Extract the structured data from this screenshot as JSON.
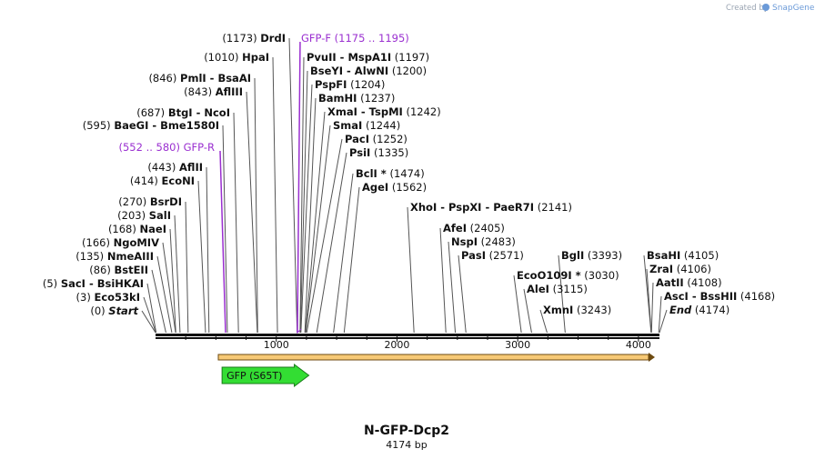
{
  "header": {
    "credit_prefix": "Created by",
    "brand": "SnapGene"
  },
  "map": {
    "name": "N-GFP-Dcp2",
    "length_label": "4174 bp",
    "length_bp": 4174,
    "axis_ticks": [
      "1000",
      "2000",
      "3000",
      "4000"
    ],
    "feature": {
      "label": "GFP (S65T)",
      "start_bp": 551,
      "end_bp": 1270,
      "color": "#33dd33"
    },
    "primers": [
      {
        "name": "GFP-F",
        "range": "(1175 .. 1195)",
        "bp": 1175,
        "color": "#9a2fd0"
      },
      {
        "name": "GFP-R",
        "range": "(552 .. 580)",
        "bp": 580,
        "color": "#9a2fd0"
      }
    ],
    "sites_left": [
      {
        "pos": "(1173)",
        "name": "DrdI",
        "bp": 1173
      },
      {
        "pos": "(1010)",
        "name": "HpaI",
        "bp": 1010
      },
      {
        "pos": "(846)",
        "name": "PmlI  - BsaAI",
        "bp": 846
      },
      {
        "pos": "(843)",
        "name": "AflIII",
        "bp": 843
      },
      {
        "pos": "(687)",
        "name": "BtgI  - NcoI",
        "bp": 687
      },
      {
        "pos": "(595)",
        "name": "BaeGI  - Bme1580I",
        "bp": 595
      },
      {
        "pos": "(443)",
        "name": "AflII",
        "bp": 443
      },
      {
        "pos": "(414)",
        "name": "EcoNI",
        "bp": 414
      },
      {
        "pos": "(270)",
        "name": "BsrDI",
        "bp": 270
      },
      {
        "pos": "(203)",
        "name": "SalI",
        "bp": 203
      },
      {
        "pos": "(168)",
        "name": "NaeI",
        "bp": 168
      },
      {
        "pos": "(166)",
        "name": "NgoMIV",
        "bp": 166
      },
      {
        "pos": "(135)",
        "name": "NmeAIII",
        "bp": 135
      },
      {
        "pos": "(86)",
        "name": "BstEII",
        "bp": 86
      },
      {
        "pos": "(5)",
        "name": "SacI  - BsiHKAI",
        "bp": 5
      },
      {
        "pos": "(3)",
        "name": "Eco53kI",
        "bp": 3
      },
      {
        "pos": "(0)",
        "name": "Start",
        "bp": 0,
        "italic": true
      }
    ],
    "sites_right": [
      {
        "name": "PvuII  - MspA1I",
        "pos": "(1197)",
        "bp": 1197
      },
      {
        "name": "BseYI  - AlwNI",
        "pos": "(1200)",
        "bp": 1200
      },
      {
        "name": "PspFI",
        "pos": "(1204)",
        "bp": 1204
      },
      {
        "name": "BamHI",
        "pos": "(1237)",
        "bp": 1237
      },
      {
        "name": "XmaI  - TspMI",
        "pos": "(1242)",
        "bp": 1242
      },
      {
        "name": "SmaI",
        "pos": "(1244)",
        "bp": 1244
      },
      {
        "name": "PacI",
        "pos": "(1252)",
        "bp": 1252
      },
      {
        "name": "PsiI",
        "pos": "(1335)",
        "bp": 1335
      },
      {
        "name": "BclI *",
        "pos": "(1474)",
        "bp": 1474
      },
      {
        "name": "AgeI",
        "pos": "(1562)",
        "bp": 1562
      },
      {
        "name": "XhoI  - PspXI  - PaeR7I",
        "pos": "(2141)",
        "bp": 2141
      },
      {
        "name": "AfeI",
        "pos": "(2405)",
        "bp": 2405
      },
      {
        "name": "NspI",
        "pos": "(2483)",
        "bp": 2483
      },
      {
        "name": "PasI",
        "pos": "(2571)",
        "bp": 2571
      },
      {
        "name": "BglI",
        "pos": "(3393)",
        "bp": 3393
      },
      {
        "name": "EcoO109I *",
        "pos": "(3030)",
        "bp": 3030
      },
      {
        "name": "AleI",
        "pos": "(3115)",
        "bp": 3115
      },
      {
        "name": "XmnI",
        "pos": "(3243)",
        "bp": 3243
      },
      {
        "name": "BsaHI",
        "pos": "(4105)",
        "bp": 4105
      },
      {
        "name": "ZraI",
        "pos": "(4106)",
        "bp": 4106
      },
      {
        "name": "AatII",
        "pos": "(4108)",
        "bp": 4108
      },
      {
        "name": "AscI  - BssHII",
        "pos": "(4168)",
        "bp": 4168
      },
      {
        "name": "End",
        "pos": "(4174)",
        "bp": 4174,
        "italic": true
      }
    ]
  }
}
